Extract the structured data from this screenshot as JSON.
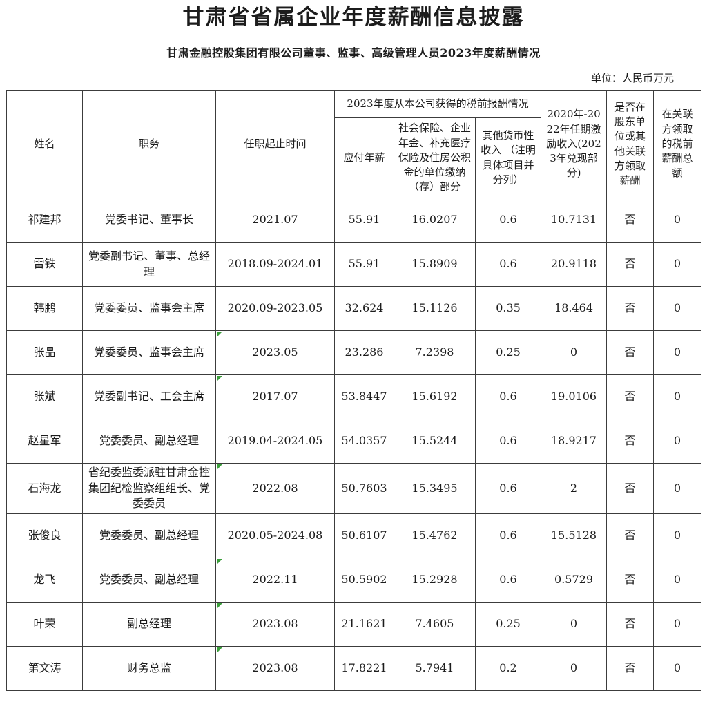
{
  "page": {
    "title": "甘肃省省属企业年度薪酬信息披露",
    "subtitle": "甘肃金融控股集团有限公司董事、监事、高级管理人员2023年度薪酬情况",
    "unit_label": "单位：人民币万元"
  },
  "colors": {
    "border": "#3c3c3c",
    "marker_green": "#3a9e3a",
    "text": "#1c1c1c"
  },
  "table": {
    "header": {
      "name": "姓名",
      "position": "职务",
      "tenure": "任职起止时间",
      "group_2023": "2023年度从本公司获得的税前报酬情况",
      "salary": "应付年薪",
      "insurance": "社会保险、企业年金、补充医疗保险及住房公积金的单位缴纳（存）部分",
      "other_income": "其他货币性收入 （注明具体项目并分列）",
      "incentive": "2020年-2022年任期激励收入(2023年兑现部分)",
      "related_party": "是否在股东单位或其他关联方领取薪酬",
      "related_total": "在关联方领取的税前薪酬总额"
    },
    "rows": [
      {
        "name": "祁建邦",
        "position": "党委书记、董事长",
        "tenure": "2021.07",
        "tenure_marker": false,
        "salary": "55.91",
        "insurance": "16.0207",
        "other_income": "0.6",
        "incentive": "10.7131",
        "related_party": "否",
        "related_total": "0"
      },
      {
        "name": "雷铁",
        "position": "党委副书记、董事、总经理",
        "tenure": "2018.09-2024.01",
        "tenure_marker": false,
        "salary": "55.91",
        "insurance": "15.8909",
        "other_income": "0.6",
        "incentive": "20.9118",
        "related_party": "否",
        "related_total": "0"
      },
      {
        "name": "韩鹏",
        "position": "党委委员、监事会主席",
        "tenure": "2020.09-2023.05",
        "tenure_marker": false,
        "salary": "32.624",
        "insurance": "15.1126",
        "other_income": "0.35",
        "incentive": "18.464",
        "related_party": "否",
        "related_total": "0"
      },
      {
        "name": "张晶",
        "position": "党委委员、监事会主席",
        "tenure": "2023.05",
        "tenure_marker": true,
        "salary": "23.286",
        "insurance": "7.2398",
        "other_income": "0.25",
        "incentive": "0",
        "related_party": "否",
        "related_total": "0"
      },
      {
        "name": "张斌",
        "position": "党委副书记、工会主席",
        "tenure": "2017.07",
        "tenure_marker": true,
        "salary": "53.8447",
        "insurance": "15.6192",
        "other_income": "0.6",
        "incentive": "19.0106",
        "related_party": "否",
        "related_total": "0"
      },
      {
        "name": "赵星军",
        "position": "党委委员、副总经理",
        "tenure": "2019.04-2024.05",
        "tenure_marker": false,
        "salary": "54.0357",
        "insurance": "15.5244",
        "other_income": "0.6",
        "incentive": "18.9217",
        "related_party": "否",
        "related_total": "0"
      },
      {
        "name": "石海龙",
        "position": "省纪委监委派驻甘肃金控集团纪检监察组组长、党委委员",
        "tenure": "2022.08",
        "tenure_marker": true,
        "salary": "50.7603",
        "insurance": "15.3495",
        "other_income": "0.6",
        "incentive": "2",
        "related_party": "否",
        "related_total": "0"
      },
      {
        "name": "张俊良",
        "position": "党委委员、副总经理",
        "tenure": "2020.05-2024.08",
        "tenure_marker": false,
        "salary": "50.6107",
        "insurance": "15.4762",
        "other_income": "0.6",
        "incentive": "15.5128",
        "related_party": "否",
        "related_total": "0"
      },
      {
        "name": "龙飞",
        "position": "党委委员、副总经理",
        "tenure": "2022.11",
        "tenure_marker": true,
        "salary": "50.5902",
        "insurance": "15.2928",
        "other_income": "0.6",
        "incentive": "0.5729",
        "related_party": "否",
        "related_total": "0"
      },
      {
        "name": "叶荣",
        "position": "副总经理",
        "tenure": "2023.08",
        "tenure_marker": true,
        "salary": "21.1621",
        "insurance": "7.4605",
        "other_income": "0.25",
        "incentive": "0",
        "related_party": "否",
        "related_total": "0"
      },
      {
        "name": "第文涛",
        "position": "财务总监",
        "tenure": "2023.08",
        "tenure_marker": true,
        "salary": "17.8221",
        "insurance": "5.7941",
        "other_income": "0.2",
        "incentive": "0",
        "related_party": "否",
        "related_total": "0"
      }
    ]
  }
}
